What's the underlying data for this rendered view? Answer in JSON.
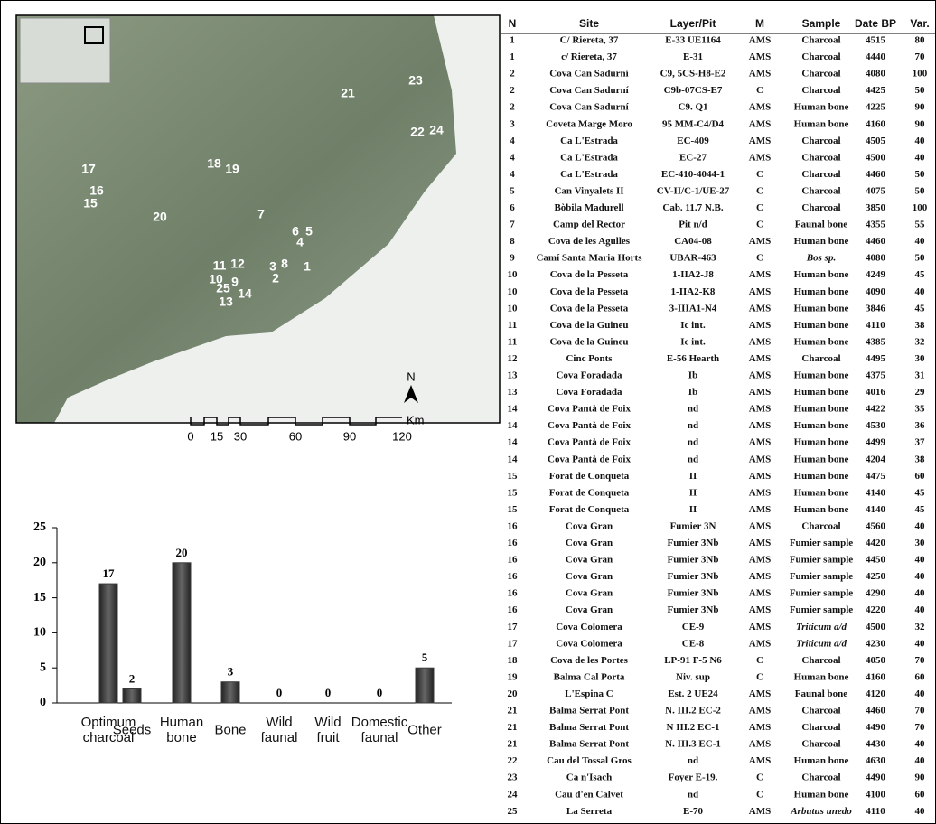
{
  "map": {
    "site_labels": [
      "1",
      "2",
      "3",
      "4",
      "5",
      "6",
      "7",
      "8",
      "9",
      "10",
      "11",
      "12",
      "13",
      "14",
      "15",
      "16",
      "17",
      "18",
      "19",
      "20",
      "21",
      "22",
      "23",
      "24",
      "25"
    ],
    "north": "N",
    "scale_labels": [
      "0",
      "15",
      "30",
      "60",
      "90",
      "120"
    ],
    "scale_unit": "Km"
  },
  "chart_data": {
    "type": "bar",
    "categories": [
      "Optimum charcoal",
      "Seeds",
      "Human bone",
      "Bone",
      "Wild faunal",
      "Wild fruit",
      "Domestic faunal",
      "Other"
    ],
    "values": [
      17,
      2,
      20,
      3,
      0,
      0,
      0,
      5
    ],
    "color": "#3a3a3a",
    "ylim": [
      0,
      25
    ],
    "yticks": [
      0,
      5,
      10,
      15,
      20,
      25
    ]
  },
  "table": {
    "header": [
      "N",
      "Site",
      "Layer/Pit",
      "M",
      "Sample",
      "Date BP",
      "Var."
    ],
    "rows": [
      [
        1,
        "C/ Riereta, 37",
        "E-33 UE1164",
        "AMS",
        "Charcoal",
        4515,
        80
      ],
      [
        1,
        "c/ Riereta, 37",
        "E-31",
        "AMS",
        "Charcoal",
        4440,
        70
      ],
      [
        2,
        "Cova Can Sadurní",
        "C9, 5CS-H8-E2",
        "AMS",
        "Charcoal",
        4080,
        100
      ],
      [
        2,
        "Cova Can Sadurní",
        "C9b-07CS-E7",
        "C",
        "Charcoal",
        4425,
        50
      ],
      [
        2,
        "Cova Can Sadurní",
        "C9. Q1",
        "AMS",
        "Human bone",
        4225,
        90
      ],
      [
        3,
        "Coveta Marge Moro",
        "95 MM-C4/D4",
        "AMS",
        "Human bone",
        4160,
        90
      ],
      [
        4,
        "Ca L'Estrada",
        "EC-409",
        "AMS",
        "Charcoal",
        4505,
        40
      ],
      [
        4,
        "Ca L'Estrada",
        "EC-27",
        "AMS",
        "Charcoal",
        4500,
        40
      ],
      [
        4,
        "Ca L'Estrada",
        "EC-410-4044-1",
        "C",
        "Charcoal",
        4460,
        50
      ],
      [
        5,
        "Can Vinyalets II",
        "CV-II/C-1/UE-27",
        "C",
        "Charcoal",
        4075,
        50
      ],
      [
        6,
        "Bòbila Madurell",
        "Cab. 11.7 N.B.",
        "C",
        "Charcoal",
        3850,
        100
      ],
      [
        7,
        "Camp del Rector",
        "Pit n/d",
        "C",
        "Faunal bone",
        4355,
        55
      ],
      [
        8,
        "Cova de les Agulles",
        "CA04-08",
        "AMS",
        "Human bone",
        4460,
        40
      ],
      [
        9,
        "Camí Santa Maria Horts",
        "UBAR-463",
        "C",
        "Bos sp.",
        4080,
        50
      ],
      [
        10,
        "Cova de la Pesseta",
        "1-IIA2-J8",
        "AMS",
        "Human bone",
        4249,
        45
      ],
      [
        10,
        "Cova de la Pesseta",
        "1-IIA2-K8",
        "AMS",
        "Human bone",
        4090,
        40
      ],
      [
        10,
        "Cova de la Pesseta",
        "3-IIIA1-N4",
        "AMS",
        "Human bone",
        3846,
        45
      ],
      [
        11,
        "Cova de la Guineu",
        "Ic int.",
        "AMS",
        "Human bone",
        4110,
        38
      ],
      [
        11,
        "Cova de la Guineu",
        "Ic int.",
        "AMS",
        "Human bone",
        4385,
        32
      ],
      [
        12,
        "Cinc Ponts",
        "E-56 Hearth",
        "AMS",
        "Charcoal",
        4495,
        30
      ],
      [
        13,
        "Cova Foradada",
        "Ib",
        "AMS",
        "Human bone",
        4375,
        31
      ],
      [
        13,
        "Cova Foradada",
        "Ib",
        "AMS",
        "Human bone",
        4016,
        29
      ],
      [
        14,
        "Cova Pantà de Foix",
        "nd",
        "AMS",
        "Human bone",
        4422,
        35
      ],
      [
        14,
        "Cova Pantà de Foix",
        "nd",
        "AMS",
        "Human bone",
        4530,
        36
      ],
      [
        14,
        "Cova Pantà de Foix",
        "nd",
        "AMS",
        "Human bone",
        4499,
        37
      ],
      [
        14,
        "Cova Pantà de Foix",
        "nd",
        "AMS",
        "Human bone",
        4204,
        38
      ],
      [
        15,
        "Forat de Conqueta",
        "II",
        "AMS",
        "Human bone",
        4475,
        60
      ],
      [
        15,
        "Forat de Conqueta",
        "II",
        "AMS",
        "Human bone",
        4140,
        45
      ],
      [
        15,
        "Forat de Conqueta",
        "II",
        "AMS",
        "Human bone",
        4140,
        45
      ],
      [
        16,
        "Cova Gran",
        "Fumier 3N",
        "AMS",
        "Charcoal",
        4560,
        40
      ],
      [
        16,
        "Cova Gran",
        "Fumier 3Nb",
        "AMS",
        "Fumier sample",
        4420,
        30
      ],
      [
        16,
        "Cova Gran",
        "Fumier 3Nb",
        "AMS",
        "Fumier sample",
        4450,
        40
      ],
      [
        16,
        "Cova Gran",
        "Fumier 3Nb",
        "AMS",
        "Fumier sample",
        4250,
        40
      ],
      [
        16,
        "Cova Gran",
        "Fumier 3Nb",
        "AMS",
        "Fumier sample",
        4290,
        40
      ],
      [
        16,
        "Cova Gran",
        "Fumier 3Nb",
        "AMS",
        "Fumier sample",
        4220,
        40
      ],
      [
        17,
        "Cova Colomera",
        "CE-9",
        "AMS",
        "Triticum a/d",
        4500,
        32
      ],
      [
        17,
        "Cova Colomera",
        "CE-8",
        "AMS",
        "Triticum a/d",
        4230,
        40
      ],
      [
        18,
        "Cova de les Portes",
        "LP-91 F-5 N6",
        "C",
        "Charcoal",
        4050,
        70
      ],
      [
        19,
        "Balma Cal Porta",
        "Niv. sup",
        "C",
        "Human bone",
        4160,
        60
      ],
      [
        20,
        "L'Espina C",
        "Est. 2 UE24",
        "AMS",
        "Faunal bone",
        4120,
        40
      ],
      [
        21,
        "Balma Serrat Pont",
        "N. III.2 EC-2",
        "AMS",
        "Charcoal",
        4460,
        70
      ],
      [
        21,
        "Balma Serrat Pont",
        "N III.2 EC-1",
        "AMS",
        "Charcoal",
        4490,
        70
      ],
      [
        21,
        "Balma Serrat Pont",
        "N. III.3 EC-1",
        "AMS",
        "Charcoal",
        4430,
        40
      ],
      [
        22,
        "Cau del Tossal Gros",
        "nd",
        "AMS",
        "Human bone",
        4630,
        40
      ],
      [
        23,
        "Ca n'Isach",
        "Foyer E-19.",
        "C",
        "Charcoal",
        4490,
        90
      ],
      [
        24,
        "Cau d'en Calvet",
        "nd",
        "C",
        "Human bone",
        4100,
        60
      ],
      [
        25,
        "La Serreta",
        "E-70",
        "AMS",
        "Arbutus unedo",
        4110,
        40
      ]
    ]
  }
}
